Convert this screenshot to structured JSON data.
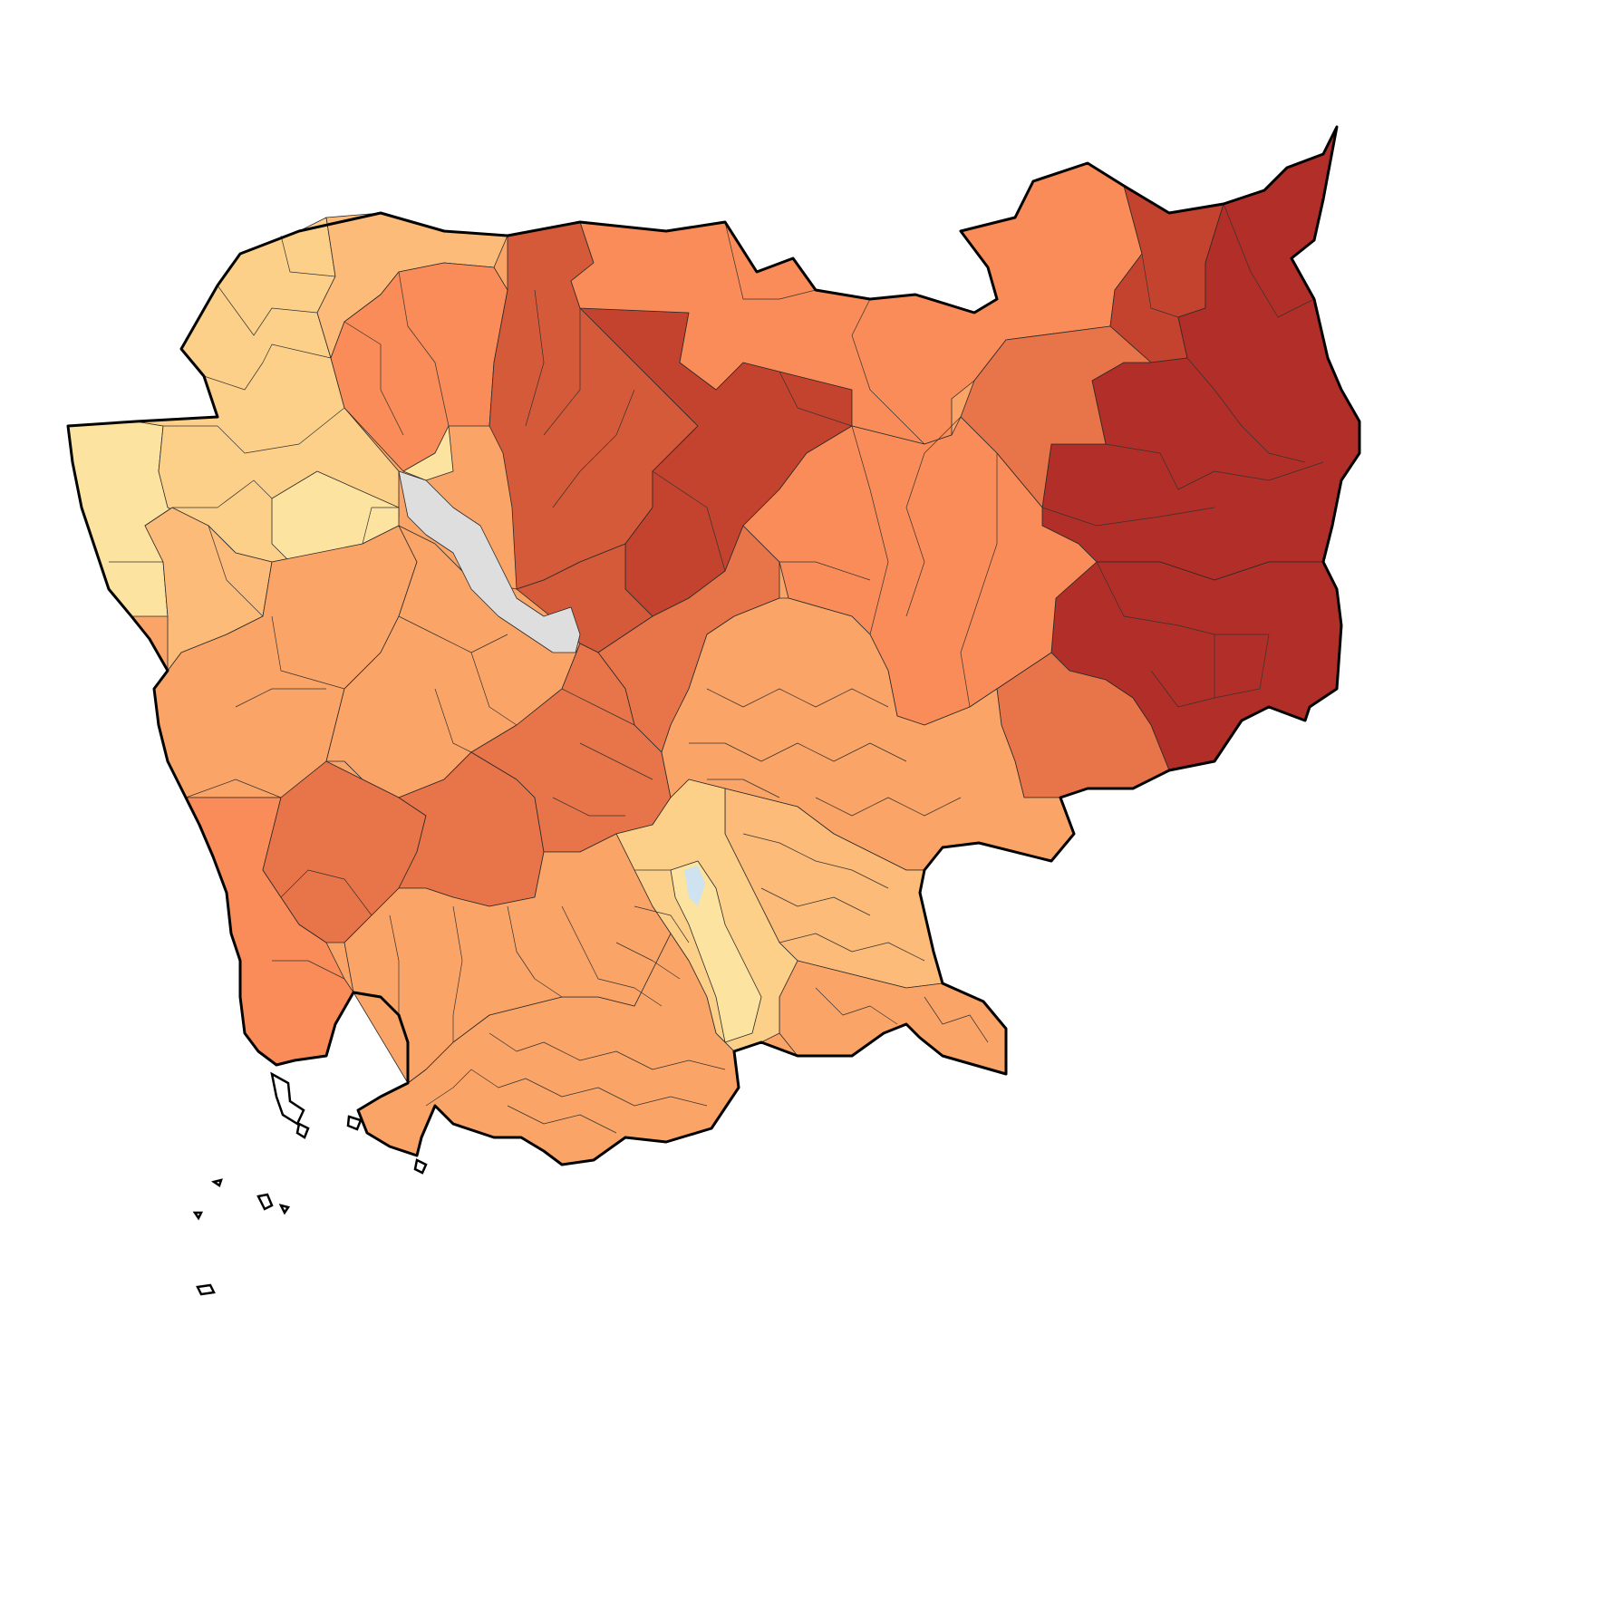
{
  "map": {
    "country": "Cambodia",
    "type": "choropleth",
    "legend": null,
    "palette": {
      "class_1": "#fde3a0",
      "class_2": "#fdd08a",
      "class_3": "#fcbb78",
      "class_4": "#fba468",
      "class_5": "#f98c58",
      "class_6": "#e8744a",
      "class_7": "#d45a3a",
      "class_8": "#c4432f",
      "class_9": "#b12f28",
      "no_data": "#dedede",
      "water": "#cfe2ef",
      "border": "#000000"
    },
    "regions": [
      {
        "id": "northwest-light",
        "class": "class_2"
      },
      {
        "id": "west-border",
        "class": "class_1"
      },
      {
        "id": "oddar-meanchey",
        "class": "class_3"
      },
      {
        "id": "preah-vihear-west",
        "class": "class_5"
      },
      {
        "id": "preah-vihear-center",
        "class": "class_7"
      },
      {
        "id": "preah-vihear-east",
        "class": "class_8"
      },
      {
        "id": "stung-treng",
        "class": "class_5"
      },
      {
        "id": "ratanakiri",
        "class": "class_9"
      },
      {
        "id": "ratanakiri-north",
        "class": "class_8"
      },
      {
        "id": "mondulkiri",
        "class": "class_9"
      },
      {
        "id": "kratie-east",
        "class": "class_6"
      },
      {
        "id": "kratie-west",
        "class": "class_5"
      },
      {
        "id": "kampong-thom",
        "class": "class_7"
      },
      {
        "id": "kampong-thom-south",
        "class": "class_6"
      },
      {
        "id": "pursat",
        "class": "class_4"
      },
      {
        "id": "koh-kong",
        "class": "class_5"
      },
      {
        "id": "kampong-speu",
        "class": "class_6"
      },
      {
        "id": "kampong-chhnang",
        "class": "class_6"
      },
      {
        "id": "kampot",
        "class": "class_4"
      },
      {
        "id": "takeo",
        "class": "class_2"
      },
      {
        "id": "phnom-penh-area",
        "class": "class_1"
      },
      {
        "id": "prey-veng",
        "class": "class_3"
      },
      {
        "id": "svay-rieng",
        "class": "class_4"
      },
      {
        "id": "kampong-cham",
        "class": "class_4"
      },
      {
        "id": "tonle-sap",
        "class": "no_data"
      }
    ]
  }
}
